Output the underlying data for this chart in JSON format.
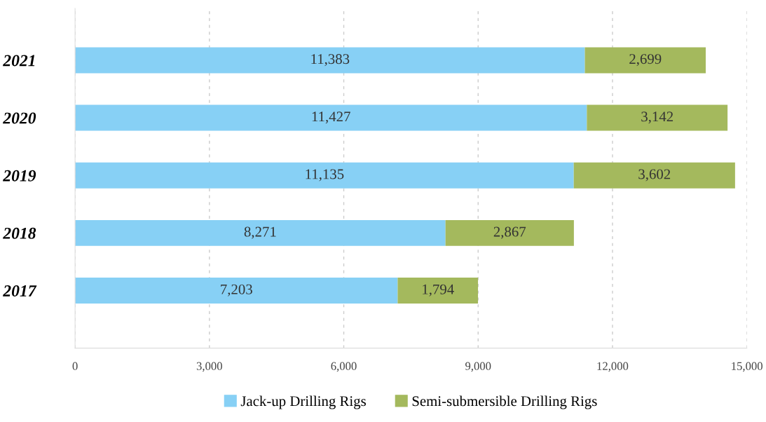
{
  "chart_data": {
    "type": "bar",
    "orientation": "horizontal",
    "stacked": true,
    "categories": [
      "2021",
      "2020",
      "2019",
      "2018",
      "2017"
    ],
    "series": [
      {
        "name": "Jack-up Drilling Rigs",
        "color": "#87d0f5",
        "values": [
          11383,
          11427,
          11135,
          8271,
          7203
        ],
        "value_labels": [
          "11,383",
          "11,427",
          "11,135",
          "8,271",
          "7,203"
        ]
      },
      {
        "name": "Semi-submersible Drilling Rigs",
        "color": "#a4b95d",
        "values": [
          2699,
          3142,
          3602,
          2867,
          1794
        ],
        "value_labels": [
          "2,699",
          "3,142",
          "3,602",
          "2,867",
          "1,794"
        ]
      }
    ],
    "xlim": [
      0,
      15000
    ],
    "xticks": [
      0,
      {
        "value": 3000,
        "label": "3,000"
      },
      {
        "value": 6000,
        "label": "6,000"
      },
      {
        "value": 9000,
        "label": "9,000"
      },
      {
        "value": 12000,
        "label": "12,000"
      },
      {
        "value": 15000,
        "label": "15,000"
      }
    ],
    "grid": "x",
    "legend": "bottom"
  }
}
